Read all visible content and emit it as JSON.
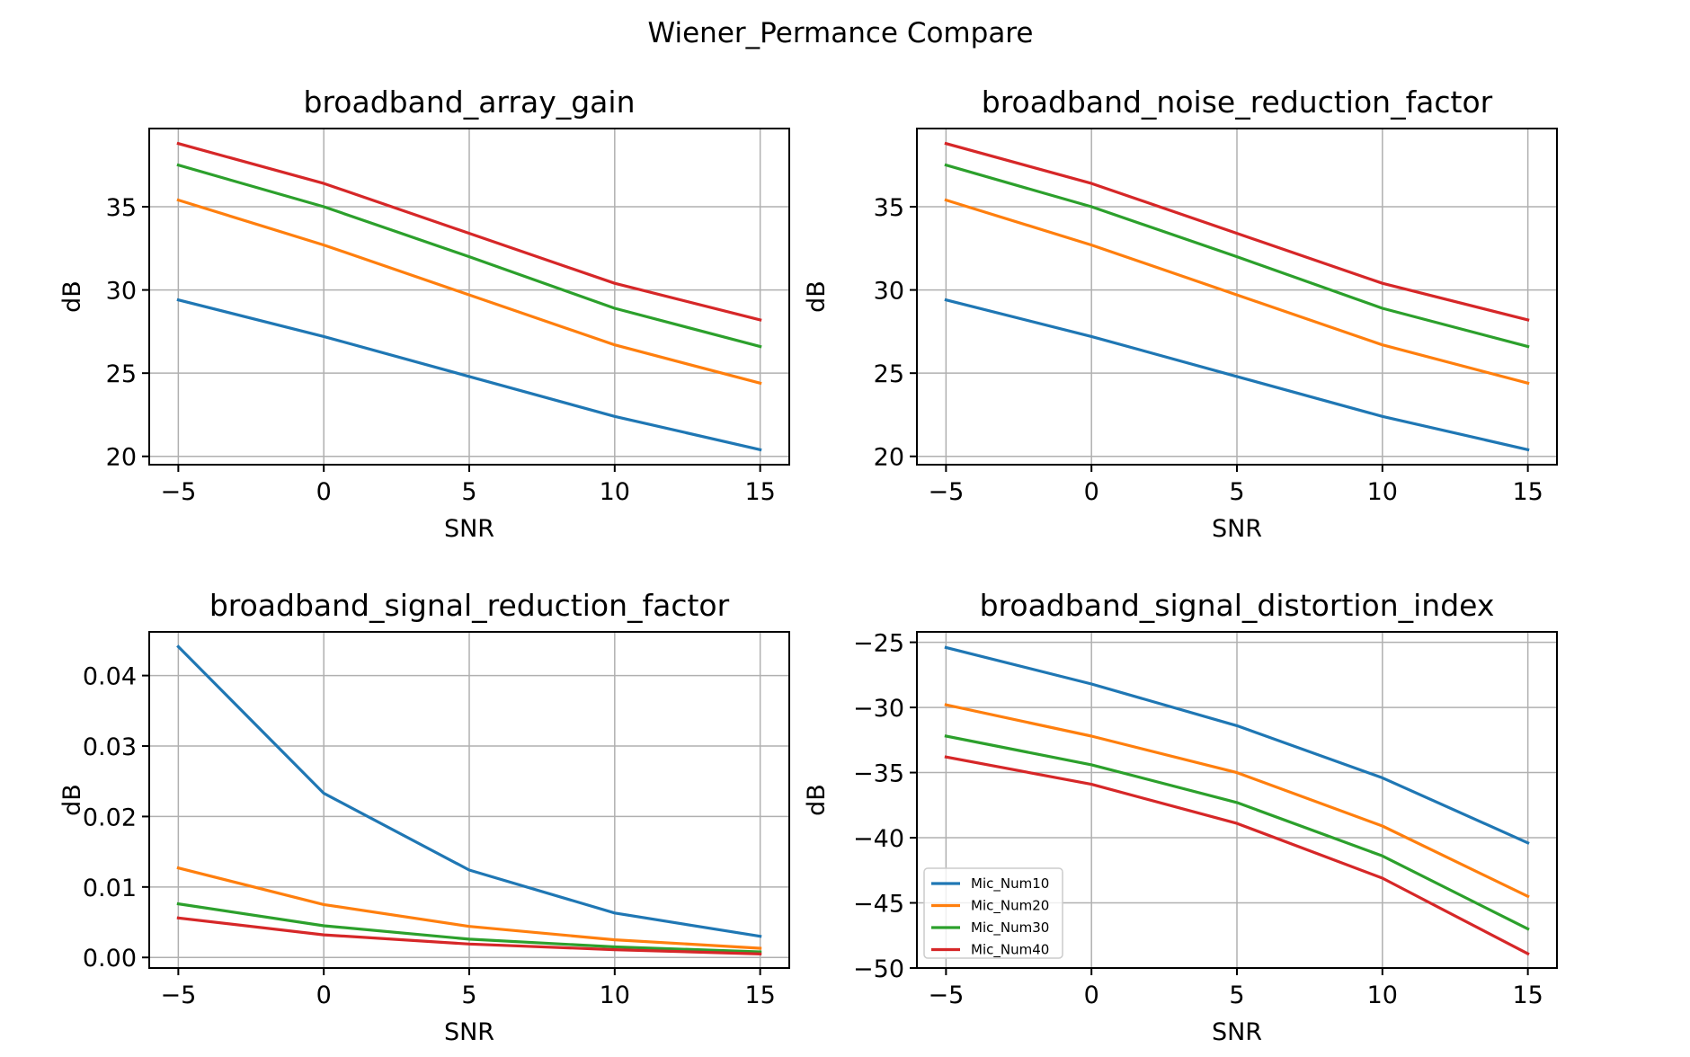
{
  "suptitle": "Wiener_Permance Compare",
  "colors": {
    "Mic_Num10": "#1f77b4",
    "Mic_Num20": "#ff7f0e",
    "Mic_Num30": "#2ca02c",
    "Mic_Num40": "#d62728"
  },
  "chart_data": [
    {
      "type": "line",
      "title": "broadband_array_gain",
      "xlabel": "SNR",
      "ylabel": "dB",
      "x": [
        -5,
        0,
        5,
        10,
        15
      ],
      "xticks": [
        -5,
        0,
        5,
        10,
        15
      ],
      "xtick_labels": [
        "−5",
        "0",
        "5",
        "10",
        "15"
      ],
      "xlim": [
        -6,
        16
      ],
      "yticks": [
        20,
        25,
        30,
        35
      ],
      "ytick_labels": [
        "20",
        "25",
        "30",
        "35"
      ],
      "ylim": [
        19.5,
        39.7
      ],
      "grid": true,
      "series": [
        {
          "name": "Mic_Num10",
          "values": [
            29.4,
            27.2,
            24.8,
            22.4,
            20.4
          ]
        },
        {
          "name": "Mic_Num20",
          "values": [
            35.4,
            32.7,
            29.7,
            26.7,
            24.4
          ]
        },
        {
          "name": "Mic_Num30",
          "values": [
            37.5,
            35.0,
            32.0,
            28.9,
            26.6
          ]
        },
        {
          "name": "Mic_Num40",
          "values": [
            38.8,
            36.4,
            33.4,
            30.4,
            28.2
          ]
        }
      ]
    },
    {
      "type": "line",
      "title": "broadband_noise_reduction_factor",
      "xlabel": "SNR",
      "ylabel": "dB",
      "x": [
        -5,
        0,
        5,
        10,
        15
      ],
      "xticks": [
        -5,
        0,
        5,
        10,
        15
      ],
      "xtick_labels": [
        "−5",
        "0",
        "5",
        "10",
        "15"
      ],
      "xlim": [
        -6,
        16
      ],
      "yticks": [
        20,
        25,
        30,
        35
      ],
      "ytick_labels": [
        "20",
        "25",
        "30",
        "35"
      ],
      "ylim": [
        19.5,
        39.7
      ],
      "grid": true,
      "series": [
        {
          "name": "Mic_Num10",
          "values": [
            29.4,
            27.2,
            24.8,
            22.4,
            20.4
          ]
        },
        {
          "name": "Mic_Num20",
          "values": [
            35.4,
            32.7,
            29.7,
            26.7,
            24.4
          ]
        },
        {
          "name": "Mic_Num30",
          "values": [
            37.5,
            35.0,
            32.0,
            28.9,
            26.6
          ]
        },
        {
          "name": "Mic_Num40",
          "values": [
            38.8,
            36.4,
            33.4,
            30.4,
            28.2
          ]
        }
      ]
    },
    {
      "type": "line",
      "title": "broadband_signal_reduction_factor",
      "xlabel": "SNR",
      "ylabel": "dB",
      "x": [
        -5,
        0,
        5,
        10,
        15
      ],
      "xticks": [
        -5,
        0,
        5,
        10,
        15
      ],
      "xtick_labels": [
        "−5",
        "0",
        "5",
        "10",
        "15"
      ],
      "xlim": [
        -6,
        16
      ],
      "yticks": [
        0,
        0.01,
        0.02,
        0.03,
        0.04
      ],
      "ytick_labels": [
        "0.00",
        "0.01",
        "0.02",
        "0.03",
        "0.04"
      ],
      "ylim": [
        -0.0015,
        0.0462
      ],
      "grid": true,
      "series": [
        {
          "name": "Mic_Num10",
          "values": [
            0.0441,
            0.0233,
            0.0124,
            0.0063,
            0.003
          ]
        },
        {
          "name": "Mic_Num20",
          "values": [
            0.0127,
            0.0075,
            0.0044,
            0.0025,
            0.0013
          ]
        },
        {
          "name": "Mic_Num30",
          "values": [
            0.0076,
            0.0045,
            0.0026,
            0.0015,
            0.0008
          ]
        },
        {
          "name": "Mic_Num40",
          "values": [
            0.0056,
            0.0032,
            0.0019,
            0.0011,
            0.0005
          ]
        }
      ]
    },
    {
      "type": "line",
      "title": "broadband_signal_distortion_index",
      "xlabel": "SNR",
      "ylabel": "dB",
      "x": [
        -5,
        0,
        5,
        10,
        15
      ],
      "xticks": [
        -5,
        0,
        5,
        10,
        15
      ],
      "xtick_labels": [
        "−5",
        "0",
        "5",
        "10",
        "15"
      ],
      "xlim": [
        -6,
        16
      ],
      "yticks": [
        -50,
        -45,
        -40,
        -35,
        -30,
        -25
      ],
      "ytick_labels": [
        "−50",
        "−45",
        "−40",
        "−35",
        "−30",
        "−25"
      ],
      "ylim": [
        -50.0,
        -24.2
      ],
      "grid": true,
      "legend": {
        "placement": "lower-left",
        "entries": [
          "Mic_Num10",
          "Mic_Num20",
          "Mic_Num30",
          "Mic_Num40"
        ]
      },
      "series": [
        {
          "name": "Mic_Num10",
          "values": [
            -25.4,
            -28.2,
            -31.4,
            -35.4,
            -40.4
          ]
        },
        {
          "name": "Mic_Num20",
          "values": [
            -29.8,
            -32.2,
            -35.0,
            -39.1,
            -44.5
          ]
        },
        {
          "name": "Mic_Num30",
          "values": [
            -32.2,
            -34.4,
            -37.3,
            -41.4,
            -47.0
          ]
        },
        {
          "name": "Mic_Num40",
          "values": [
            -33.8,
            -35.9,
            -38.9,
            -43.1,
            -48.9
          ]
        }
      ]
    }
  ]
}
